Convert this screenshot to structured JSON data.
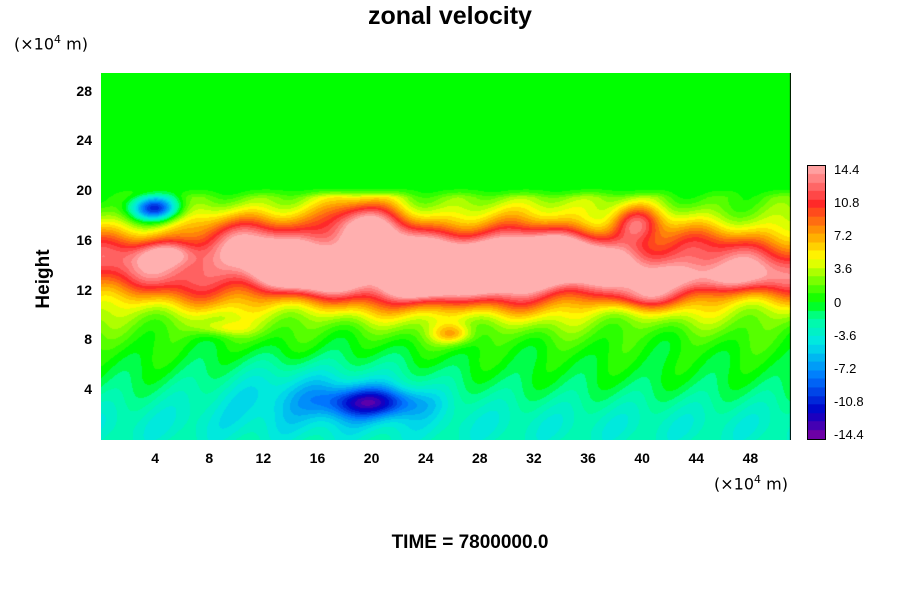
{
  "chart_data": {
    "type": "heatmap",
    "title": "zonal velocity",
    "ylabel": "Height",
    "xlabel": "",
    "x_unit_label": "(×10⁴ m)",
    "y_unit_label": "(×10⁴ m)",
    "x_ticks": [
      4,
      8,
      12,
      16,
      20,
      24,
      28,
      32,
      36,
      40,
      44,
      48
    ],
    "y_ticks": [
      4,
      8,
      12,
      16,
      20,
      24,
      28
    ],
    "xlim": [
      0,
      51
    ],
    "ylim": [
      0,
      29.5
    ],
    "colorbar": {
      "range": [
        -14.4,
        14.4
      ],
      "labels": [
        "14.4",
        "10.8",
        "7.2",
        "3.6",
        "0",
        "-3.6",
        "-7.2",
        "-10.8",
        "-14.4"
      ]
    },
    "footer": "TIME = 7800000.0",
    "field_description": [
      {
        "region": "y 20-29.5",
        "value": 0
      },
      {
        "region": "x 16-23, y 15-20",
        "value": 14.4
      },
      {
        "region": "x 12-18, y 12-15",
        "value": 14.4
      },
      {
        "region": "x 22-26, y 11-14",
        "value": 14.4
      },
      {
        "region": "x 29-37, y 12-16",
        "value": 14.4
      },
      {
        "region": "x 38-41, y 16-19",
        "value": 14.4
      },
      {
        "region": "x 3-7, y 14-16",
        "value": 12
      },
      {
        "region": "x 40-50, y 12-14",
        "value": 12
      },
      {
        "region": "x 4, y 18.5",
        "value": -8
      },
      {
        "region": "x 20, y 3",
        "value": -9
      },
      {
        "region": "y 0-5",
        "value": -4
      }
    ]
  }
}
